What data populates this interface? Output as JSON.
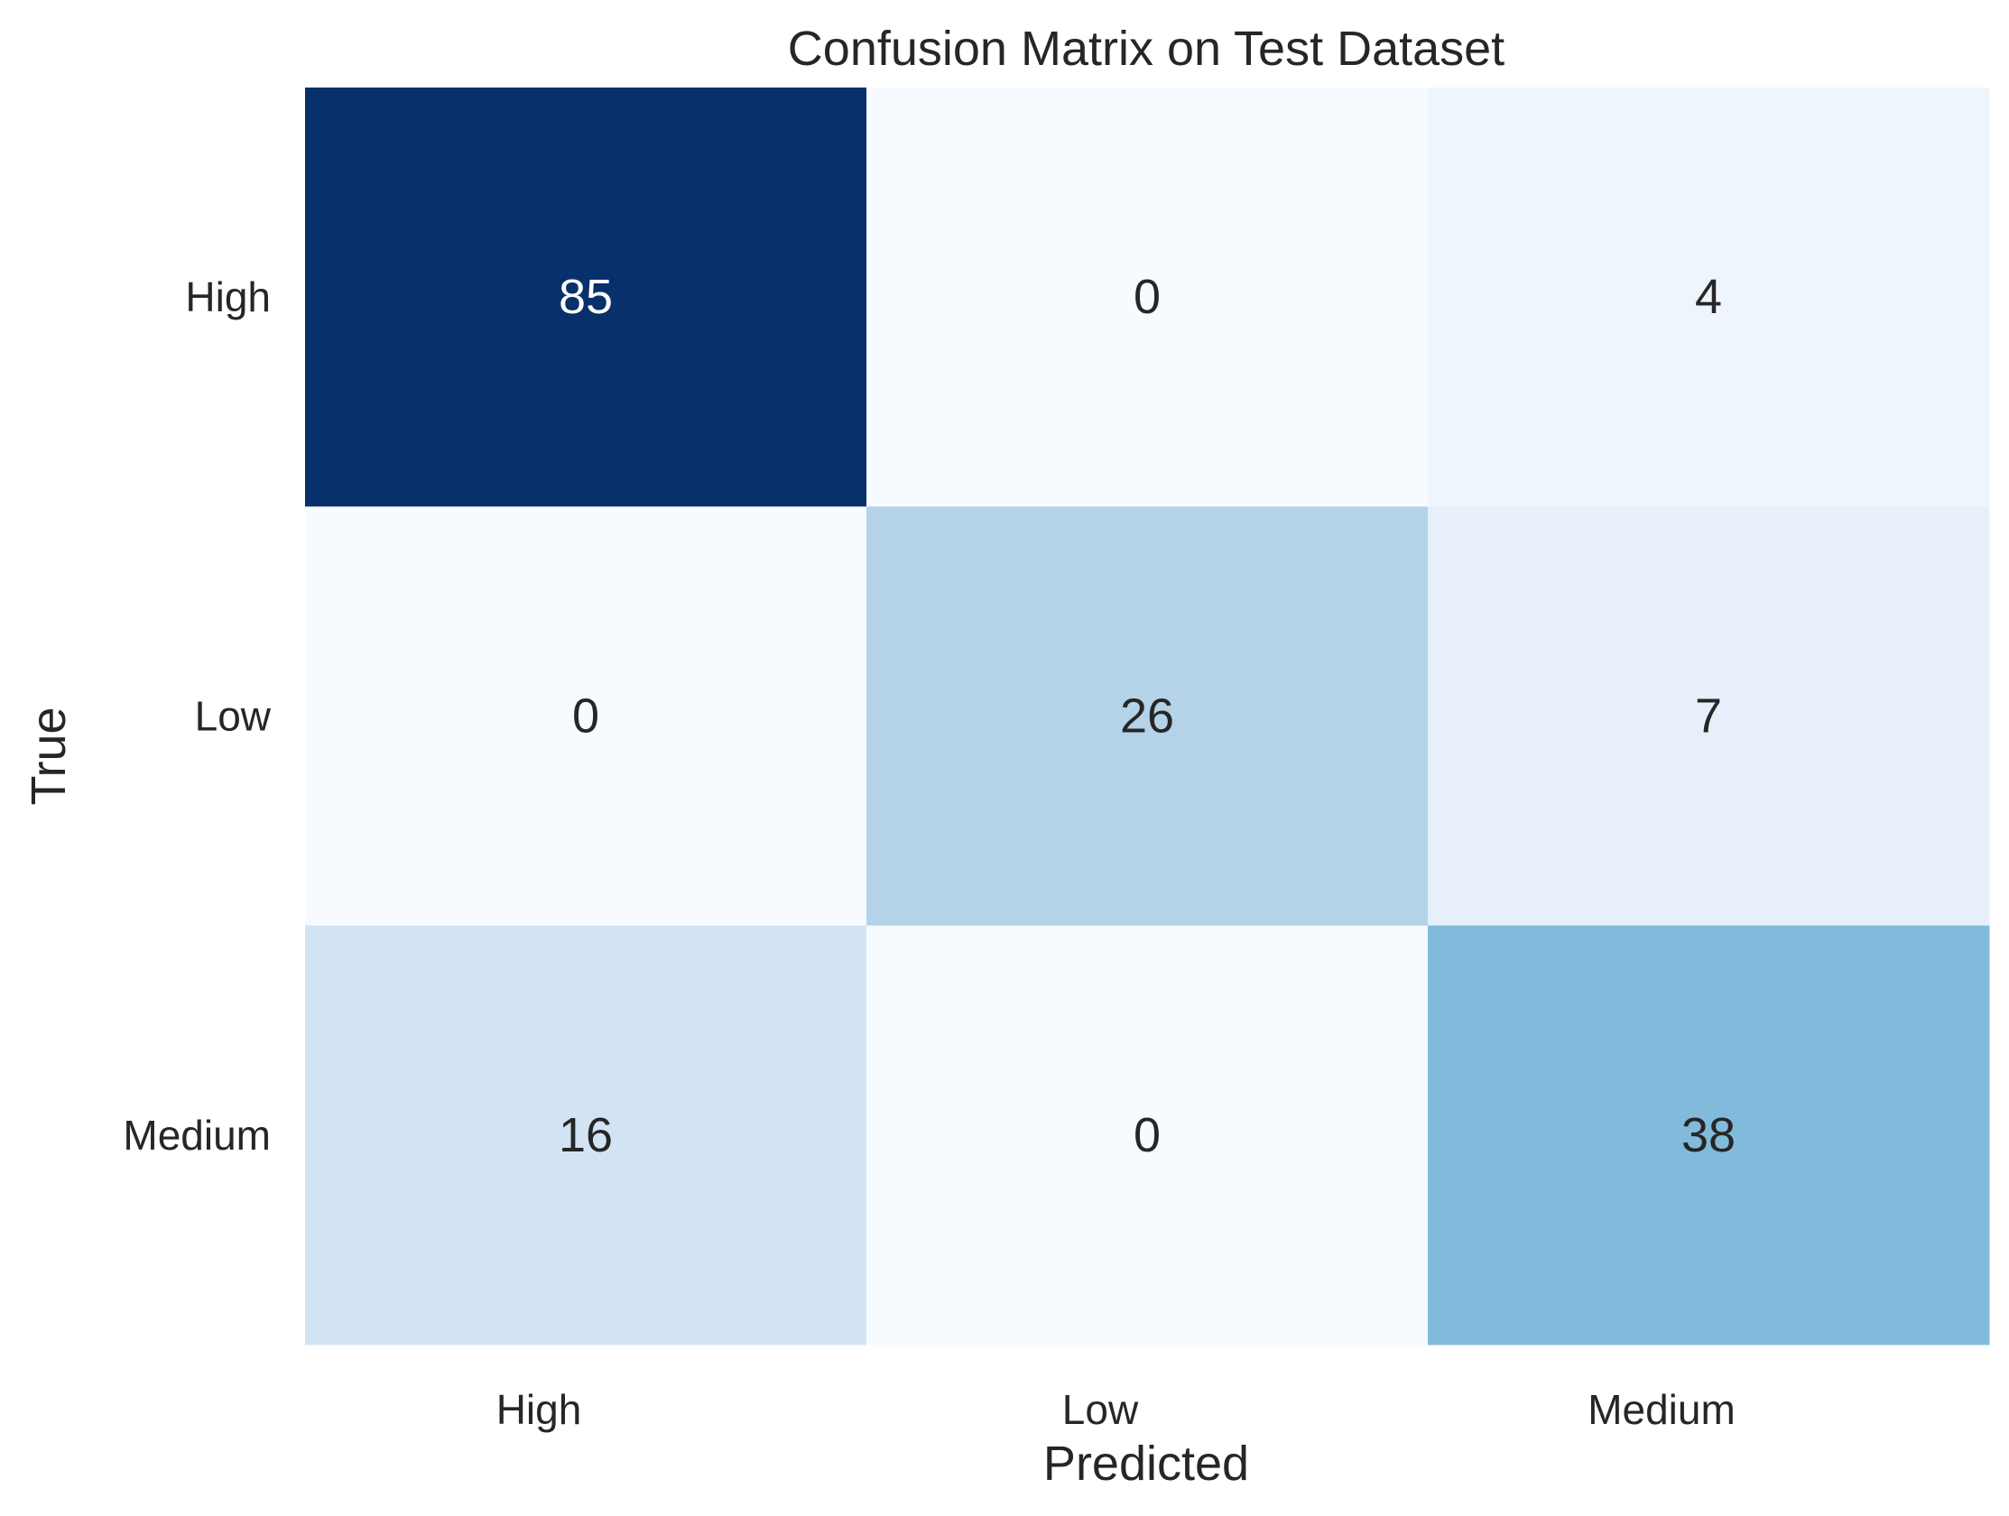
{
  "chart_data": {
    "type": "heatmap",
    "title": "Confusion Matrix on Test Dataset",
    "xlabel": "Predicted",
    "ylabel": "True",
    "x_categories": [
      "High",
      "Low",
      "Medium"
    ],
    "y_categories": [
      "High",
      "Low",
      "Medium"
    ],
    "values": [
      [
        85,
        0,
        4
      ],
      [
        0,
        26,
        7
      ],
      [
        16,
        0,
        38
      ]
    ],
    "colormap": "Blues",
    "value_range": [
      0,
      85
    ],
    "colorbar": false,
    "grid": false
  }
}
